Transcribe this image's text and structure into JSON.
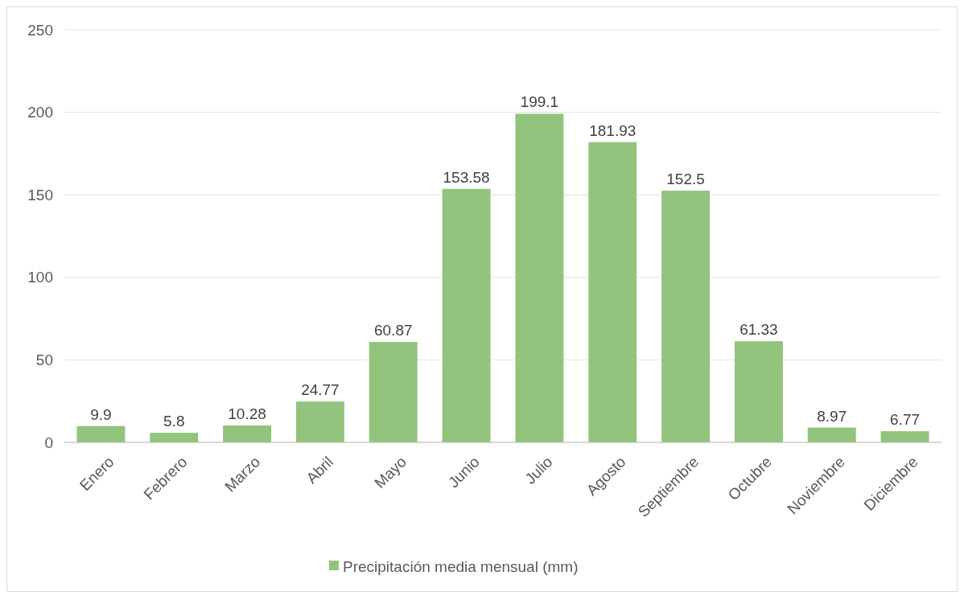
{
  "chart_data": {
    "type": "bar",
    "categories": [
      "Enero",
      "Febrero",
      "Marzo",
      "Abril",
      "Mayo",
      "Junio",
      "Julio",
      "Agosto",
      "Septiembre",
      "Octubre",
      "Noviembre",
      "Diciembre"
    ],
    "series": [
      {
        "name": "Precipitación media mensual (mm)",
        "color": "#93c47d",
        "values": [
          9.9,
          5.8,
          10.28,
          24.77,
          60.87,
          153.58,
          199.1,
          181.93,
          152.5,
          61.33,
          8.97,
          6.77
        ]
      }
    ],
    "ylim": [
      0,
      250
    ],
    "yticks": [
      0,
      50,
      100,
      150,
      200,
      250
    ],
    "grid": "y",
    "legend": "bottom",
    "data_labels": true
  }
}
